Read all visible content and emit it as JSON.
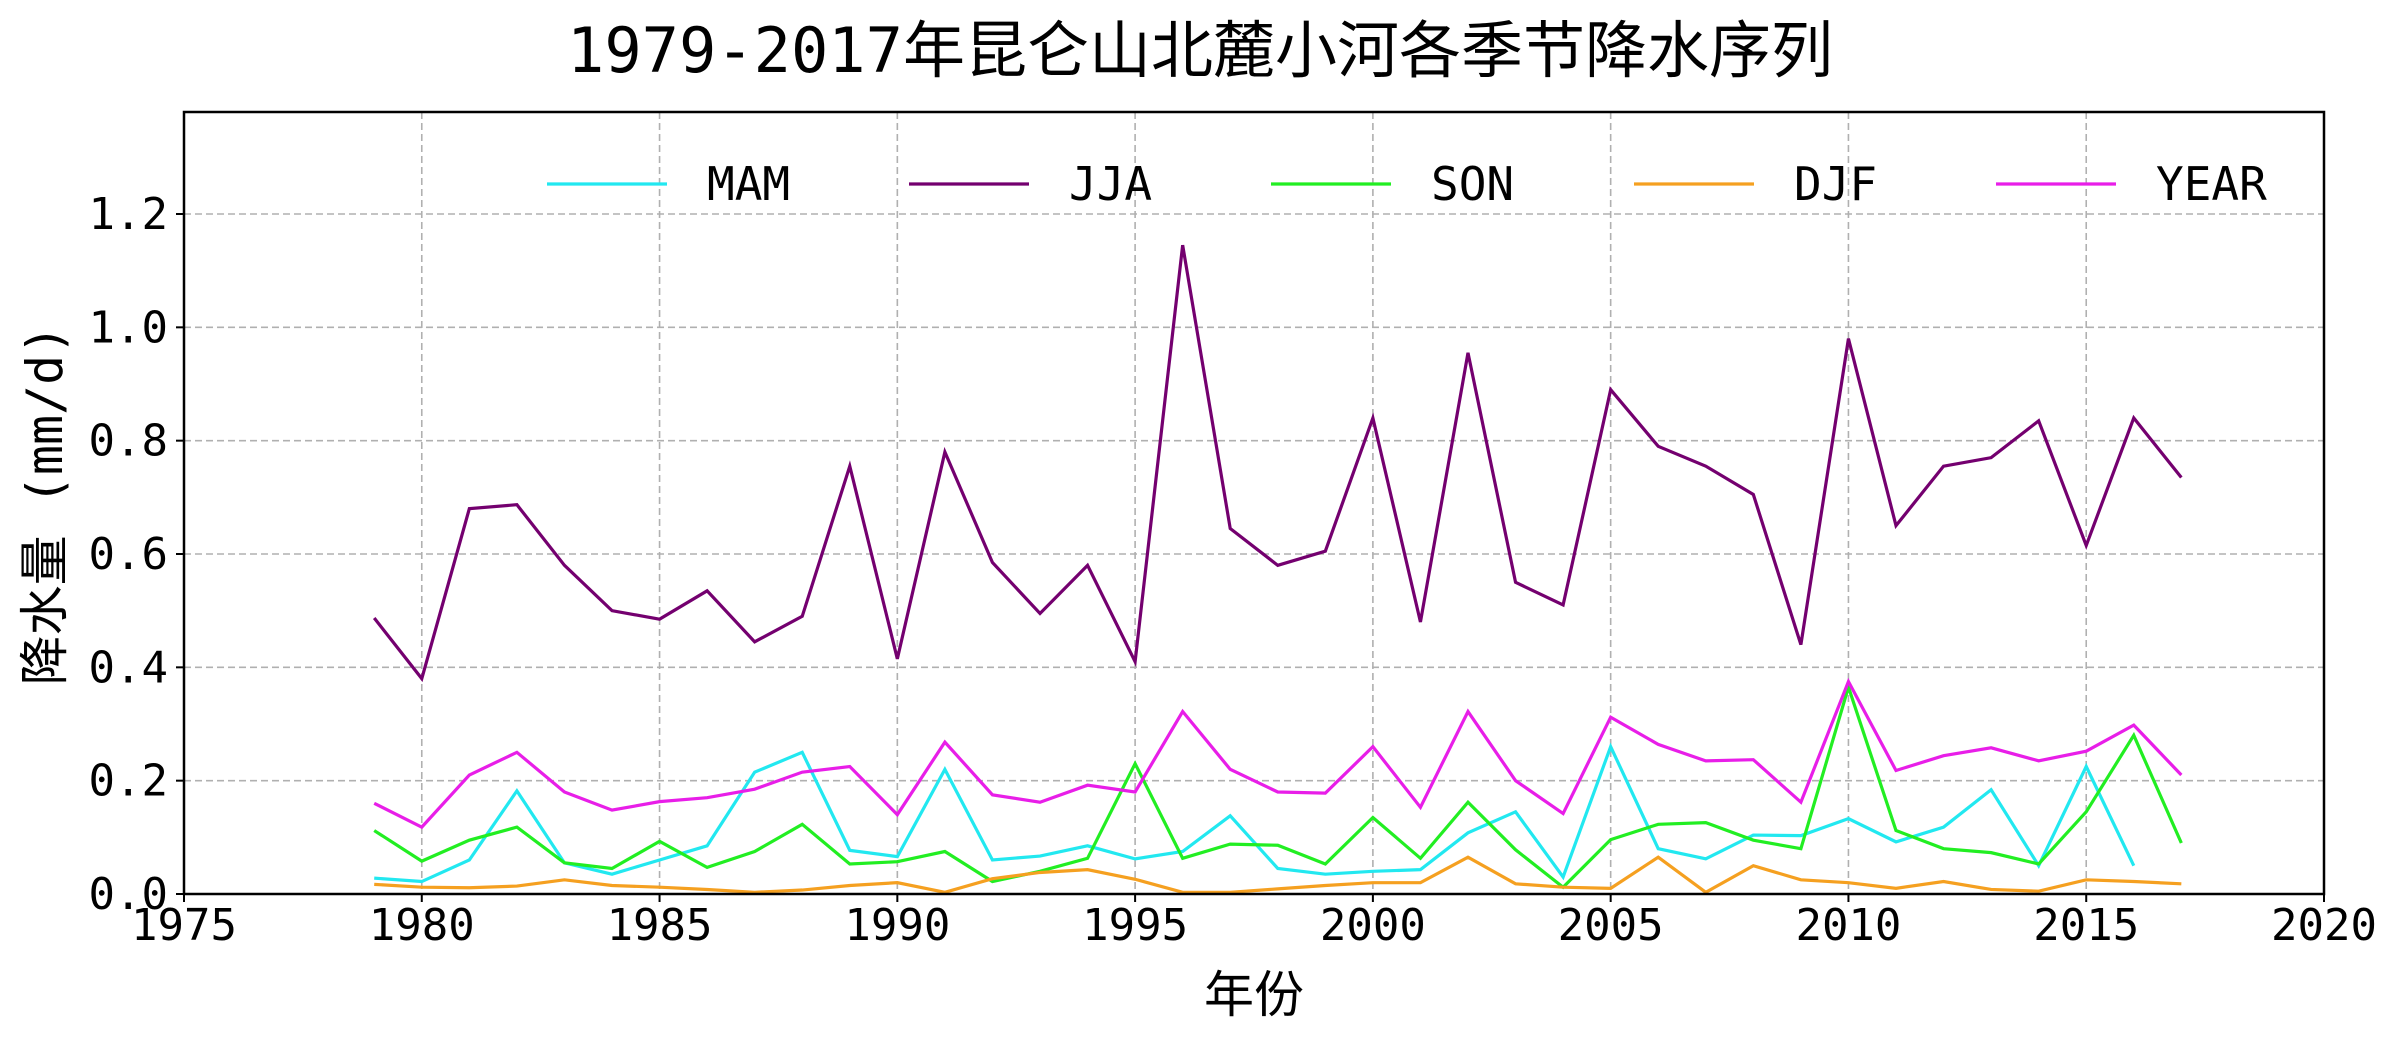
{
  "chart_data": {
    "type": "line",
    "title": "1979-2017年昆仑山北麓小河各季节降水序列",
    "xlabel": "年份",
    "ylabel": "降水量 (mm/d)",
    "xlim": [
      1975,
      2020
    ],
    "ylim": [
      0,
      1.38
    ],
    "xticks": [
      "1975",
      "1980",
      "1985",
      "1990",
      "1995",
      "2000",
      "2005",
      "2010",
      "2015",
      "2020"
    ],
    "yticks": [
      "0.0",
      "0.2",
      "0.4",
      "0.6",
      "0.8",
      "1.0",
      "1.2"
    ],
    "grid": true,
    "legend_position": "top",
    "x": [
      1979,
      1980,
      1981,
      1982,
      1983,
      1984,
      1985,
      1986,
      1987,
      1988,
      1989,
      1990,
      1991,
      1992,
      1993,
      1994,
      1995,
      1996,
      1997,
      1998,
      1999,
      2000,
      2001,
      2002,
      2003,
      2004,
      2005,
      2006,
      2007,
      2008,
      2009,
      2010,
      2011,
      2012,
      2013,
      2014,
      2015,
      2016,
      2017
    ],
    "series": [
      {
        "name": "MAM",
        "color": "#22e8f0",
        "values": [
          0.028,
          0.022,
          0.06,
          0.182,
          0.055,
          0.035,
          0.06,
          0.085,
          0.215,
          0.25,
          0.077,
          0.066,
          0.22,
          0.06,
          0.067,
          0.085,
          0.062,
          0.075,
          0.138,
          0.045,
          0.035,
          0.04,
          0.043,
          0.108,
          0.145,
          0.03,
          0.26,
          0.08,
          0.062,
          0.104,
          0.103,
          0.133,
          0.092,
          0.118,
          0.184,
          0.05,
          0.225,
          0.05,
          null
        ]
      },
      {
        "name": "JJA",
        "color": "#74006f",
        "values": [
          0.487,
          0.38,
          0.68,
          0.687,
          0.58,
          0.5,
          0.485,
          0.535,
          0.445,
          0.49,
          0.755,
          0.415,
          0.78,
          0.585,
          0.495,
          0.58,
          0.41,
          1.145,
          0.645,
          0.58,
          0.605,
          0.84,
          0.48,
          0.955,
          0.55,
          0.51,
          0.89,
          0.79,
          0.755,
          0.705,
          0.44,
          0.98,
          0.65,
          0.755,
          0.77,
          0.835,
          0.615,
          0.84,
          0.735
        ]
      },
      {
        "name": "SON",
        "color": "#22ee22",
        "values": [
          0.112,
          0.058,
          0.095,
          0.118,
          0.055,
          0.045,
          0.093,
          0.047,
          0.075,
          0.123,
          0.053,
          0.057,
          0.075,
          0.022,
          0.04,
          0.063,
          0.23,
          0.063,
          0.088,
          0.086,
          0.053,
          0.135,
          0.063,
          0.162,
          0.078,
          0.012,
          0.096,
          0.123,
          0.126,
          0.095,
          0.08,
          0.365,
          0.112,
          0.08,
          0.073,
          0.053,
          0.145,
          0.28,
          0.09
        ]
      },
      {
        "name": "DJF",
        "color": "#f5a020",
        "values": [
          0.017,
          0.012,
          0.011,
          0.014,
          0.025,
          0.015,
          0.012,
          0.008,
          0.003,
          0.007,
          0.015,
          0.02,
          0.003,
          0.027,
          0.038,
          0.043,
          0.026,
          0.003,
          0.003,
          0.009,
          0.015,
          0.02,
          0.02,
          0.065,
          0.018,
          0.012,
          0.01,
          0.065,
          0.003,
          0.05,
          0.025,
          0.02,
          0.01,
          0.022,
          0.008,
          0.005,
          0.025,
          0.022,
          0.018
        ]
      },
      {
        "name": "YEAR",
        "color": "#e81ee8",
        "values": [
          0.16,
          0.118,
          0.21,
          0.25,
          0.18,
          0.148,
          0.163,
          0.17,
          0.185,
          0.215,
          0.225,
          0.14,
          0.268,
          0.175,
          0.162,
          0.192,
          0.18,
          0.322,
          0.22,
          0.18,
          0.178,
          0.26,
          0.153,
          0.322,
          0.2,
          0.142,
          0.312,
          0.264,
          0.235,
          0.237,
          0.162,
          0.375,
          0.218,
          0.244,
          0.258,
          0.235,
          0.252,
          0.298,
          0.21
        ]
      }
    ]
  }
}
